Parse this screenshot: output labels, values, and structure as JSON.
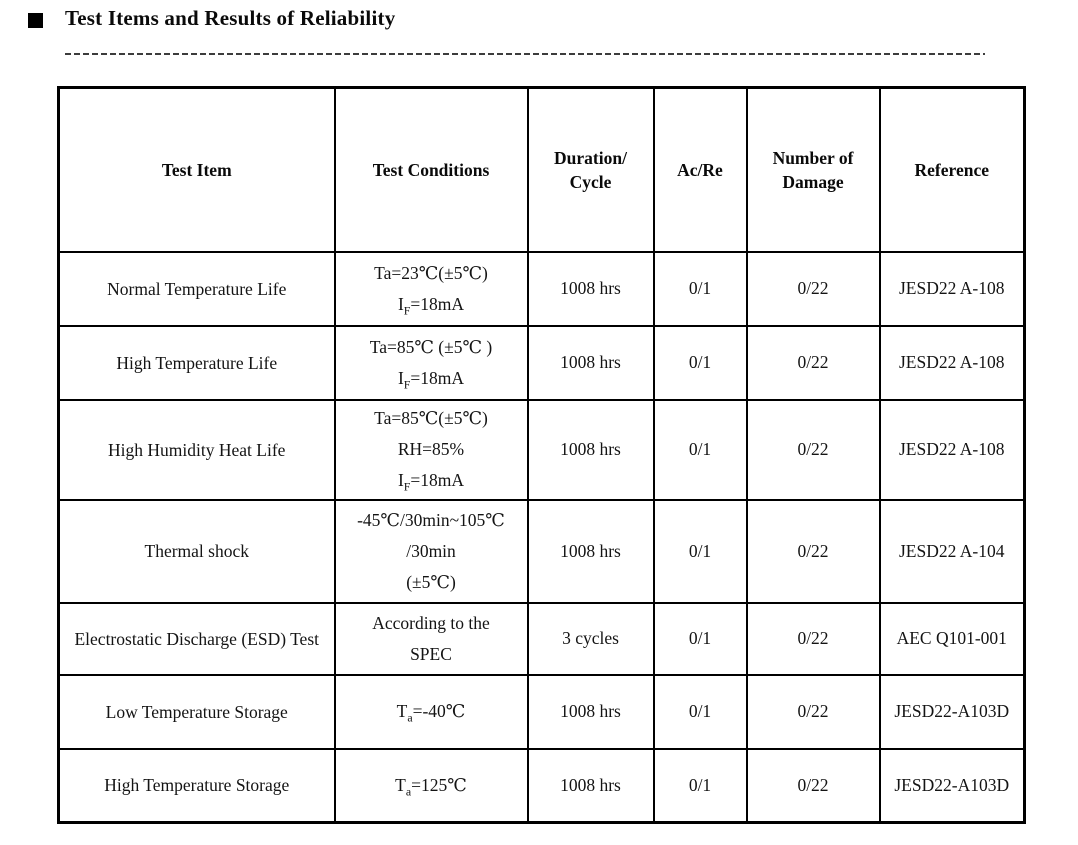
{
  "page": {
    "bullet": "■",
    "title": "Test Items and Results of Reliability"
  },
  "table": {
    "headers": [
      {
        "lines": [
          "Test Item"
        ]
      },
      {
        "lines": [
          "Test Conditions"
        ]
      },
      {
        "lines": [
          "Duration/",
          "Cycle"
        ]
      },
      {
        "lines": [
          "Ac/Re"
        ]
      },
      {
        "lines": [
          "Number of",
          "Damage"
        ]
      },
      {
        "lines": [
          "Reference"
        ]
      }
    ],
    "rows": [
      {
        "item": "Normal Temperature Life",
        "conditions": [
          "Ta=23℃(±5℃)",
          "I_{F}=18mA"
        ],
        "duration": "1008 hrs",
        "ac_re": "0/1",
        "damage": "0/22",
        "reference": "JESD22 A-108"
      },
      {
        "item": "High Temperature Life",
        "conditions": [
          "Ta=85℃ (±5℃ )",
          "I_{F}=18mA"
        ],
        "duration": "1008 hrs",
        "ac_re": "0/1",
        "damage": "0/22",
        "reference": "JESD22 A-108"
      },
      {
        "item": "High Humidity Heat Life",
        "conditions": [
          "Ta=85℃(±5℃)",
          "RH=85%",
          "I_{F}=18mA"
        ],
        "duration": "1008 hrs",
        "ac_re": "0/1",
        "damage": "0/22",
        "reference": "JESD22 A-108"
      },
      {
        "item": "Thermal shock",
        "conditions": [
          "-45℃/30min~105℃",
          "/30min",
          "(±5℃)"
        ],
        "duration": "1008 hrs",
        "ac_re": "0/1",
        "damage": "0/22",
        "reference": "JESD22 A-104"
      },
      {
        "item": "Electrostatic Discharge (ESD) Test",
        "conditions": [
          "According to the",
          "SPEC"
        ],
        "duration": "3 cycles",
        "ac_re": "0/1",
        "damage": "0/22",
        "reference": "AEC Q101-001"
      },
      {
        "item": "Low Temperature Storage",
        "conditions": [
          "T_{a}=-40℃"
        ],
        "duration": "1008 hrs",
        "ac_re": "0/1",
        "damage": "0/22",
        "reference": "JESD22-A103D"
      },
      {
        "item": "High Temperature Storage",
        "conditions": [
          "T_{a}=125℃"
        ],
        "duration": "1008 hrs",
        "ac_re": "0/1",
        "damage": "0/22",
        "reference": "JESD22-A103D"
      }
    ]
  }
}
